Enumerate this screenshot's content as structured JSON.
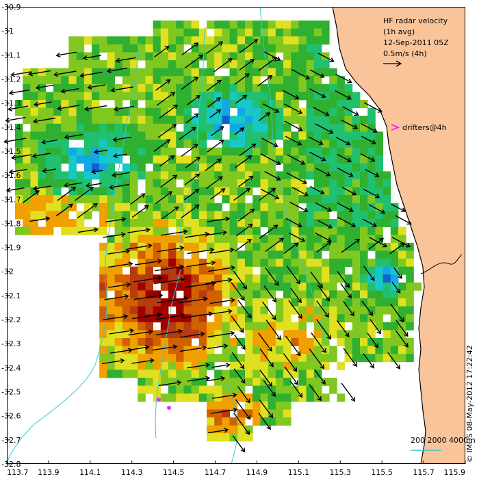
{
  "map": {
    "title": "HF radar velocity",
    "subtitle": "(1h avg)",
    "timestamp": "12-Sep-2011 05Z",
    "scale_label": "0.5m/s (4h)",
    "drifters_label": "drifters@4h",
    "credit": "© IMOS 08-May-2012 17:22:42",
    "bathymetry_label": "200  2000  4000m",
    "x_ticks": [
      "113.7",
      "113.9",
      "114.1",
      "114.3",
      "114.5",
      "114.7",
      "114.9",
      "115.1",
      "115.3",
      "115.5",
      "115.7",
      "115.9"
    ],
    "y_ticks": [
      "-30.9",
      "-31",
      "-31.1",
      "-31.2",
      "-31.3",
      "-31.4",
      "-31.5",
      "-31.6",
      "-31.7",
      "-31.8",
      "-31.9",
      "-32",
      "-32.1",
      "-32.2",
      "-32.3",
      "-32.4",
      "-32.5",
      "-32.6",
      "-32.7",
      "-32.8"
    ],
    "colors": {
      "land": "#f9c49a",
      "coast": "#000000",
      "isobath": "#36c8d8",
      "drifter": "#ff22ff",
      "arrow": "#000000",
      "speed_scale": [
        "#08189a",
        "#1060d0",
        "#12a8e8",
        "#18c8c8",
        "#20c070",
        "#30b030",
        "#80c820",
        "#e0e020",
        "#f0a000",
        "#d06000",
        "#b83a10",
        "#a00000"
      ]
    }
  }
}
